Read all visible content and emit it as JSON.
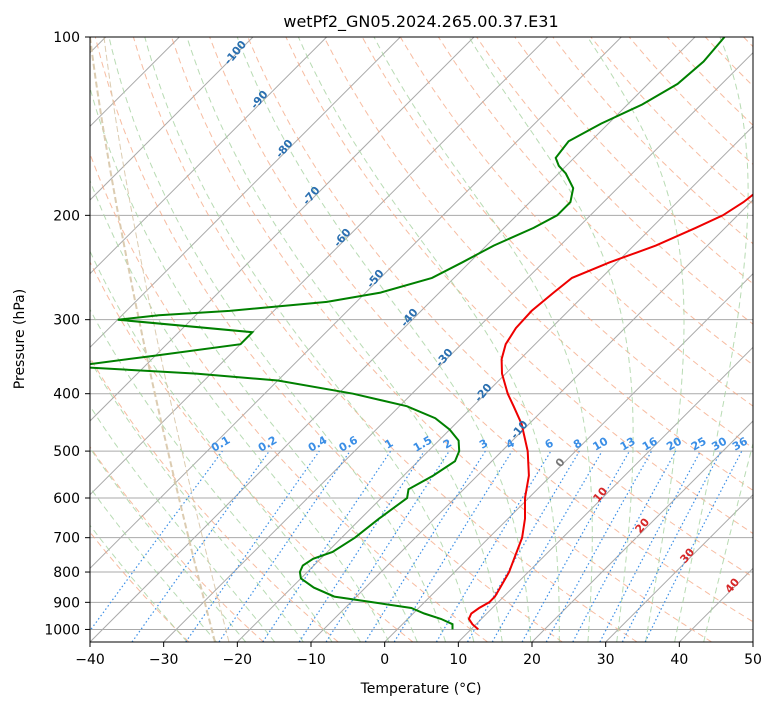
{
  "chart_data": {
    "type": "skew-t",
    "title": "wetPf2_GN05.2024.265.00.37.E31",
    "xlabel": "Temperature (°C)",
    "ylabel": "Pressure (hPa)",
    "xlim": [
      -40,
      50
    ],
    "ylim": [
      1050,
      100
    ],
    "x_ticks": [
      "−40",
      "−30",
      "−20",
      "−10",
      "0",
      "10",
      "20",
      "30",
      "40",
      "50"
    ],
    "y_ticks": [
      "100",
      "200",
      "300",
      "400",
      "500",
      "600",
      "700",
      "800",
      "900",
      "1000"
    ],
    "grid": true,
    "series": [
      {
        "color": "#ee0000",
        "points": [
          [
            1000,
            11
          ],
          [
            980,
            9.5
          ],
          [
            960,
            8.3
          ],
          [
            940,
            7.9
          ],
          [
            920,
            8.2
          ],
          [
            900,
            8.8
          ],
          [
            880,
            8.8
          ],
          [
            850,
            8.3
          ],
          [
            800,
            7.4
          ],
          [
            750,
            6.0
          ],
          [
            700,
            4.5
          ],
          [
            650,
            2.3
          ],
          [
            600,
            -0.5
          ],
          [
            550,
            -3.0
          ],
          [
            500,
            -6.5
          ],
          [
            450,
            -11
          ],
          [
            420,
            -14.5
          ],
          [
            400,
            -17
          ],
          [
            370,
            -20.5
          ],
          [
            350,
            -22.5
          ],
          [
            330,
            -24
          ],
          [
            310,
            -24.8
          ],
          [
            290,
            -25
          ],
          [
            270,
            -24.5
          ],
          [
            255,
            -24
          ],
          [
            240,
            -21
          ],
          [
            225,
            -17
          ],
          [
            210,
            -14
          ],
          [
            200,
            -12
          ],
          [
            190,
            -11
          ],
          [
            180,
            -10.5
          ],
          [
            170,
            -10
          ],
          [
            160,
            -10
          ],
          [
            150,
            -11
          ],
          [
            140,
            -9
          ],
          [
            130,
            -7
          ],
          [
            120,
            -6
          ],
          [
            110,
            -5.5
          ],
          [
            100,
            -5.5
          ]
        ]
      },
      {
        "color": "#008000",
        "points": [
          [
            1000,
            7.5
          ],
          [
            980,
            6.8
          ],
          [
            960,
            4.5
          ],
          [
            940,
            1.5
          ],
          [
            920,
            -1
          ],
          [
            900,
            -7
          ],
          [
            880,
            -13
          ],
          [
            850,
            -17
          ],
          [
            820,
            -20
          ],
          [
            800,
            -21
          ],
          [
            780,
            -21.5
          ],
          [
            760,
            -21
          ],
          [
            740,
            -19.3
          ],
          [
            700,
            -18.2
          ],
          [
            650,
            -17.5
          ],
          [
            600,
            -16.5
          ],
          [
            580,
            -17.5
          ],
          [
            550,
            -16
          ],
          [
            520,
            -15
          ],
          [
            500,
            -15.8
          ],
          [
            480,
            -17.3
          ],
          [
            460,
            -20
          ],
          [
            440,
            -23.5
          ],
          [
            420,
            -29
          ],
          [
            400,
            -38
          ],
          [
            380,
            -50
          ],
          [
            370,
            -62
          ],
          [
            360,
            -80
          ],
          [
            345,
            -70
          ],
          [
            330,
            -60
          ],
          [
            315,
            -60
          ],
          [
            300,
            -80
          ],
          [
            295,
            -75
          ],
          [
            290,
            -66
          ],
          [
            280,
            -54
          ],
          [
            270,
            -48
          ],
          [
            255,
            -43
          ],
          [
            240,
            -41
          ],
          [
            225,
            -39
          ],
          [
            210,
            -36
          ],
          [
            200,
            -34.5
          ],
          [
            190,
            -34.5
          ],
          [
            180,
            -36
          ],
          [
            170,
            -39
          ],
          [
            165,
            -41
          ],
          [
            160,
            -42.5
          ],
          [
            150,
            -43
          ],
          [
            140,
            -41
          ],
          [
            130,
            -38
          ],
          [
            120,
            -36
          ],
          [
            110,
            -35.5
          ],
          [
            100,
            -36
          ]
        ]
      }
    ],
    "mixing_ratio_labels": [
      "0.1",
      "0.2",
      "0.4",
      "0.6",
      "1",
      "1.5",
      "2",
      "3",
      "4",
      "6",
      "8",
      "10",
      "13",
      "16",
      "20",
      "25",
      "30",
      "36"
    ],
    "mixing_ratio_values": [
      0.1,
      0.2,
      0.4,
      0.6,
      1,
      1.5,
      2,
      3,
      4,
      6,
      8,
      10,
      13,
      16,
      20,
      25,
      30,
      36
    ],
    "dry_adiabat_labels": [
      "-100",
      "-90",
      "-80",
      "-70",
      "-60",
      "-50",
      "-40",
      "-30",
      "-20",
      "-10"
    ],
    "moist_adiabat_labels": [
      "0",
      "10",
      "20",
      "30",
      "40"
    ],
    "colors": {
      "temperature": "#ee0000",
      "dewpoint": "#008000",
      "isotherm": "#aaaaaa",
      "dry_adiabat": "#f4a582",
      "moist_adiabat": "#a6d2a0",
      "mixing_ratio": "#3a8ee6",
      "other_curve": "#d8c6a8"
    }
  }
}
